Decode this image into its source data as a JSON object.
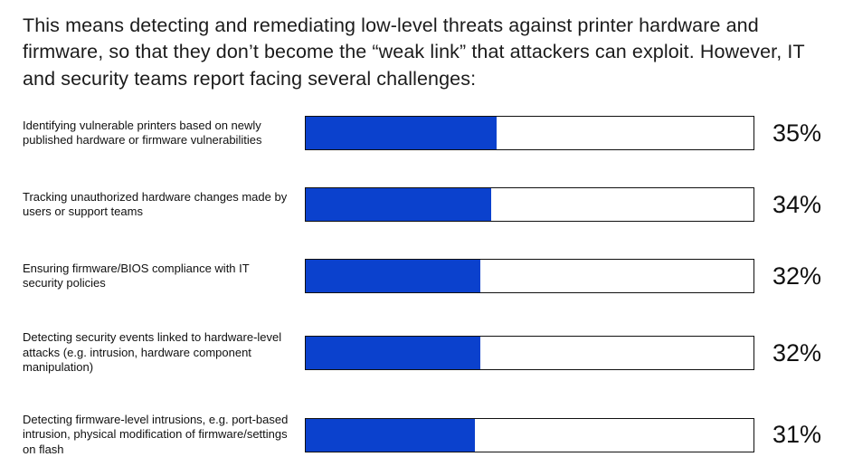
{
  "intro": "This means detecting and remediating low-level threats against printer hardware and firmware, so that they don’t become the “weak link” that attackers can exploit. However, IT and security teams report facing several challenges:",
  "chart_data": {
    "type": "bar",
    "orientation": "horizontal",
    "title": "",
    "xlabel": "",
    "ylabel": "",
    "xlim": [
      0,
      82
    ],
    "grid": false,
    "legend": "none",
    "bar_fill_color": "#0B41CD",
    "bar_outline_color": "#101010",
    "categories": [
      "Identifying vulnerable printers based on newly published hardware or firmware vulnerabilities",
      "Tracking unauthorized hardware changes made by users or support teams",
      "Ensuring firmware/BIOS compliance with IT security policies",
      "Detecting security events linked to hardware-level attacks (e.g. intrusion, hardware component manipulation)",
      "Detecting firmware-level intrusions, e.g. port-based intrusion, physical modification of firmware/settings on flash"
    ],
    "values": [
      35,
      34,
      32,
      32,
      31
    ],
    "value_labels": [
      "35%",
      "34%",
      "32%",
      "32%",
      "31%"
    ]
  }
}
